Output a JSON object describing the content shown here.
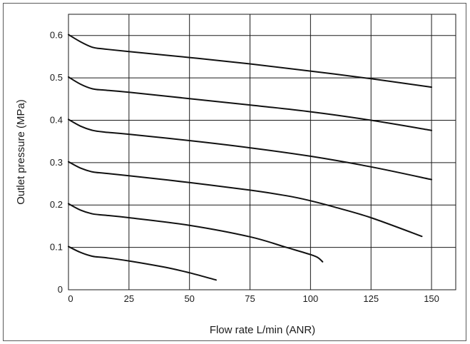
{
  "chart_data": {
    "type": "line",
    "title": "",
    "xlabel": "Flow rate L/min (ANR)",
    "ylabel": "Outlet pressure (MPa)",
    "xlim": [
      0,
      160
    ],
    "ylim": [
      0,
      0.65
    ],
    "xticks": [
      0,
      25,
      50,
      75,
      100,
      125,
      150
    ],
    "yticks": [
      0,
      0.1,
      0.2,
      0.3,
      0.4,
      0.5,
      0.6
    ],
    "xtick_labels": [
      "0",
      "25",
      "50",
      "75",
      "100",
      "125",
      "150"
    ],
    "ytick_labels": [
      "0",
      "0.1",
      "0.2",
      "0.3",
      "0.4",
      "0.5",
      "0.6"
    ],
    "grid": true,
    "legend": false,
    "line_color": "#111111",
    "grid_color": "#1a1a1a",
    "series": [
      {
        "x": [
          0,
          5,
          10,
          15,
          25,
          50,
          75,
          100,
          125,
          150
        ],
        "y": [
          0.602,
          0.585,
          0.572,
          0.568,
          0.562,
          0.548,
          0.533,
          0.516,
          0.498,
          0.478
        ]
      },
      {
        "x": [
          0,
          5,
          10,
          15,
          25,
          50,
          75,
          100,
          125,
          150
        ],
        "y": [
          0.502,
          0.485,
          0.474,
          0.471,
          0.466,
          0.451,
          0.436,
          0.42,
          0.4,
          0.376
        ]
      },
      {
        "x": [
          0,
          5,
          10,
          15,
          25,
          50,
          75,
          100,
          125,
          150
        ],
        "y": [
          0.402,
          0.386,
          0.376,
          0.372,
          0.367,
          0.352,
          0.335,
          0.315,
          0.29,
          0.26
        ]
      },
      {
        "x": [
          0,
          5,
          10,
          15,
          25,
          50,
          75,
          90,
          100,
          110,
          125,
          146
        ],
        "y": [
          0.302,
          0.287,
          0.278,
          0.275,
          0.269,
          0.253,
          0.235,
          0.222,
          0.21,
          0.195,
          0.17,
          0.126
        ]
      },
      {
        "x": [
          0,
          5,
          10,
          15,
          25,
          50,
          75,
          90,
          100,
          103,
          105
        ],
        "y": [
          0.203,
          0.188,
          0.179,
          0.176,
          0.17,
          0.152,
          0.125,
          0.1,
          0.083,
          0.076,
          0.066
        ]
      },
      {
        "x": [
          0,
          5,
          10,
          15,
          25,
          40,
          50,
          61
        ],
        "y": [
          0.102,
          0.088,
          0.079,
          0.076,
          0.068,
          0.053,
          0.04,
          0.023
        ]
      }
    ]
  }
}
